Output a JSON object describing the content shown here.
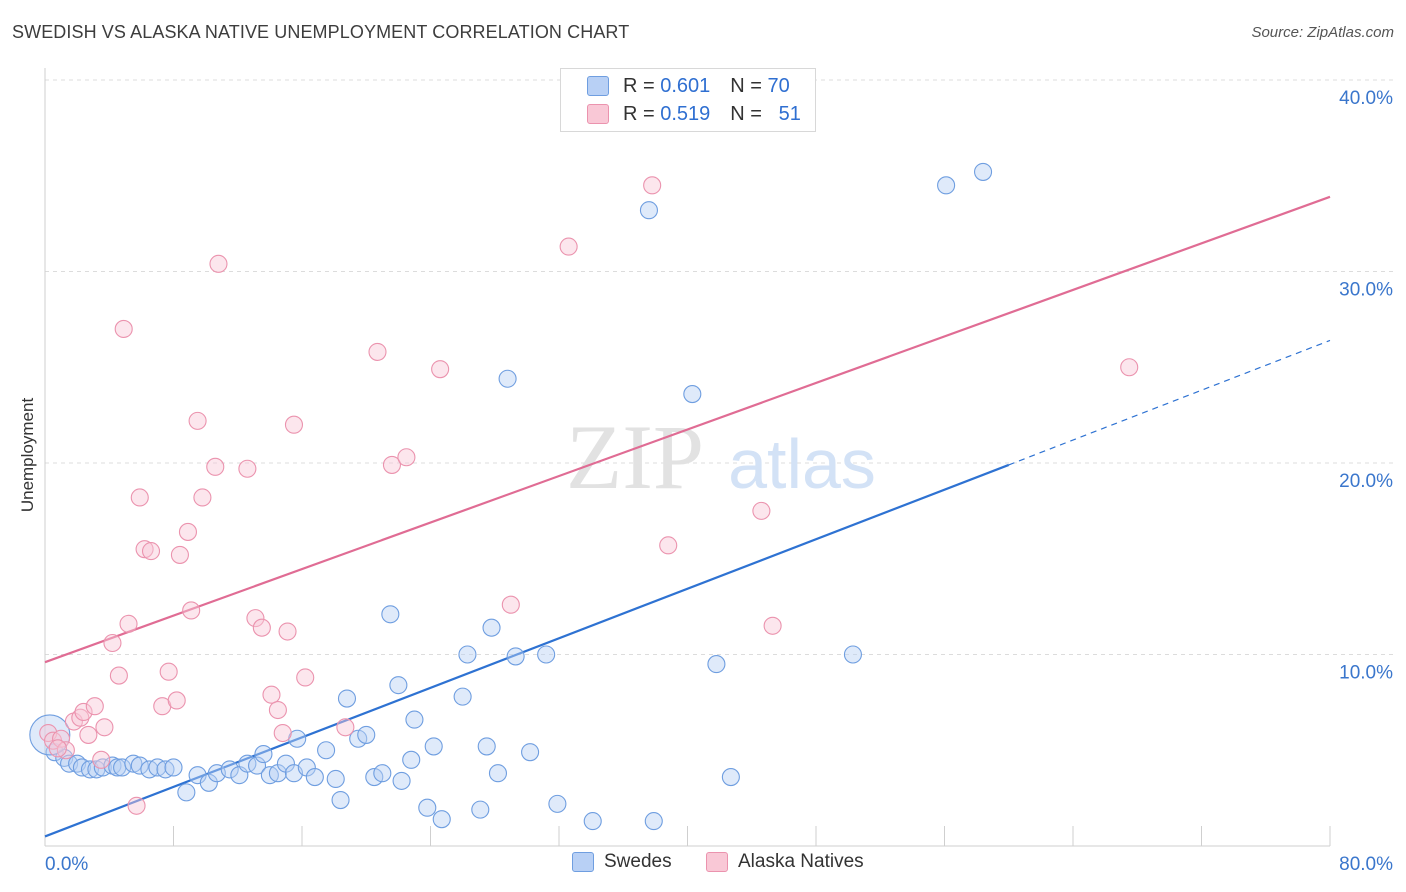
{
  "title": "SWEDISH VS ALASKA NATIVE UNEMPLOYMENT CORRELATION CHART",
  "source": "Source: ZipAtlas.com",
  "watermark": {
    "part1": "ZIP",
    "part2": "atlas"
  },
  "legend": {
    "r_label": "R =",
    "n_label": "N =",
    "rows": [
      {
        "name": "Swedes",
        "r": "0.601",
        "n": "70",
        "color": "#6f9ee0"
      },
      {
        "name": "Alaska Natives",
        "r": "0.519",
        "n": "51",
        "color": "#eb93ae"
      }
    ]
  },
  "chart_data": {
    "type": "scatter",
    "title": "SWEDISH VS ALASKA NATIVE UNEMPLOYMENT CORRELATION CHART",
    "xlabel": "",
    "ylabel": "Unemployment",
    "xlim": [
      0,
      80
    ],
    "ylim": [
      0,
      40
    ],
    "x_tick_labels": [
      "0.0%",
      "80.0%"
    ],
    "y_tick_labels": [
      "10.0%",
      "20.0%",
      "30.0%",
      "40.0%"
    ],
    "y_ticks": [
      10,
      20,
      30,
      40
    ],
    "grid": true,
    "series": [
      {
        "name": "Swedes",
        "color": "#6f9ee0",
        "trend": {
          "x0": 0,
          "y0": 0.5,
          "x1": 60,
          "y1": 19.9,
          "dash_to_x": 80,
          "dash_to_y": 26.4,
          "color": "#2e72d2"
        },
        "points": [
          [
            0.6,
            4.9
          ],
          [
            1.2,
            4.6
          ],
          [
            1.5,
            4.3
          ],
          [
            2.0,
            4.3
          ],
          [
            2.3,
            4.1
          ],
          [
            2.8,
            4.0
          ],
          [
            3.2,
            4.0
          ],
          [
            3.6,
            4.1
          ],
          [
            4.2,
            4.2
          ],
          [
            4.5,
            4.1
          ],
          [
            4.8,
            4.1
          ],
          [
            5.5,
            4.3
          ],
          [
            5.9,
            4.2
          ],
          [
            6.5,
            4.0
          ],
          [
            7.0,
            4.1
          ],
          [
            7.5,
            4.0
          ],
          [
            8.0,
            4.1
          ],
          [
            8.8,
            2.8
          ],
          [
            9.5,
            3.7
          ],
          [
            10.2,
            3.3
          ],
          [
            10.7,
            3.8
          ],
          [
            11.5,
            4.0
          ],
          [
            12.1,
            3.7
          ],
          [
            12.6,
            4.3
          ],
          [
            13.2,
            4.2
          ],
          [
            13.6,
            4.8
          ],
          [
            14.0,
            3.7
          ],
          [
            14.5,
            3.8
          ],
          [
            15.0,
            4.3
          ],
          [
            15.5,
            3.8
          ],
          [
            15.7,
            5.6
          ],
          [
            16.3,
            4.1
          ],
          [
            16.8,
            3.6
          ],
          [
            17.5,
            5.0
          ],
          [
            18.1,
            3.5
          ],
          [
            18.4,
            2.4
          ],
          [
            18.8,
            7.7
          ],
          [
            19.5,
            5.6
          ],
          [
            20.0,
            5.8
          ],
          [
            20.5,
            3.6
          ],
          [
            21.0,
            3.8
          ],
          [
            21.5,
            12.1
          ],
          [
            22.0,
            8.4
          ],
          [
            22.2,
            3.4
          ],
          [
            22.8,
            4.5
          ],
          [
            23.0,
            6.6
          ],
          [
            23.8,
            2.0
          ],
          [
            24.2,
            5.2
          ],
          [
            24.7,
            1.4
          ],
          [
            26.0,
            7.8
          ],
          [
            26.3,
            10.0
          ],
          [
            27.1,
            1.9
          ],
          [
            27.5,
            5.2
          ],
          [
            27.8,
            11.4
          ],
          [
            28.2,
            3.8
          ],
          [
            28.8,
            24.4
          ],
          [
            29.3,
            9.9
          ],
          [
            30.2,
            4.9
          ],
          [
            31.2,
            10.0
          ],
          [
            31.9,
            2.2
          ],
          [
            34.1,
            1.3
          ],
          [
            37.6,
            33.2
          ],
          [
            37.9,
            1.3
          ],
          [
            40.3,
            23.6
          ],
          [
            41.8,
            9.5
          ],
          [
            42.7,
            3.6
          ],
          [
            50.3,
            10.0
          ],
          [
            56.1,
            34.5
          ],
          [
            58.4,
            35.2
          ],
          [
            0.3,
            5.8
          ]
        ]
      },
      {
        "name": "Alaska Natives",
        "color": "#eb93ae",
        "trend": {
          "x0": 0,
          "y0": 9.6,
          "x1": 80,
          "y1": 33.9,
          "color": "#e06c94"
        },
        "points": [
          [
            0.2,
            5.9
          ],
          [
            0.5,
            5.5
          ],
          [
            1.0,
            5.6
          ],
          [
            1.3,
            5.0
          ],
          [
            1.8,
            6.5
          ],
          [
            2.2,
            6.7
          ],
          [
            2.4,
            7.0
          ],
          [
            2.7,
            5.8
          ],
          [
            3.1,
            7.3
          ],
          [
            3.5,
            4.5
          ],
          [
            3.7,
            6.2
          ],
          [
            4.2,
            10.6
          ],
          [
            4.6,
            8.9
          ],
          [
            4.9,
            27.0
          ],
          [
            5.2,
            11.6
          ],
          [
            5.7,
            2.1
          ],
          [
            5.9,
            18.2
          ],
          [
            6.2,
            15.5
          ],
          [
            6.6,
            15.4
          ],
          [
            7.3,
            7.3
          ],
          [
            7.7,
            9.1
          ],
          [
            8.2,
            7.6
          ],
          [
            8.4,
            15.2
          ],
          [
            8.9,
            16.4
          ],
          [
            9.1,
            12.3
          ],
          [
            9.5,
            22.2
          ],
          [
            9.8,
            18.2
          ],
          [
            10.8,
            30.4
          ],
          [
            10.6,
            19.8
          ],
          [
            12.6,
            19.7
          ],
          [
            13.1,
            11.9
          ],
          [
            13.5,
            11.4
          ],
          [
            14.1,
            7.9
          ],
          [
            14.5,
            7.1
          ],
          [
            14.8,
            5.9
          ],
          [
            15.1,
            11.2
          ],
          [
            15.5,
            22.0
          ],
          [
            16.2,
            8.8
          ],
          [
            18.7,
            6.2
          ],
          [
            20.7,
            25.8
          ],
          [
            21.6,
            19.9
          ],
          [
            22.5,
            20.3
          ],
          [
            24.6,
            24.9
          ],
          [
            29.0,
            12.6
          ],
          [
            32.6,
            31.3
          ],
          [
            37.8,
            34.5
          ],
          [
            38.8,
            15.7
          ],
          [
            44.6,
            17.5
          ],
          [
            45.3,
            11.5
          ],
          [
            67.5,
            25.0
          ],
          [
            0.8,
            5.1
          ]
        ]
      }
    ]
  }
}
